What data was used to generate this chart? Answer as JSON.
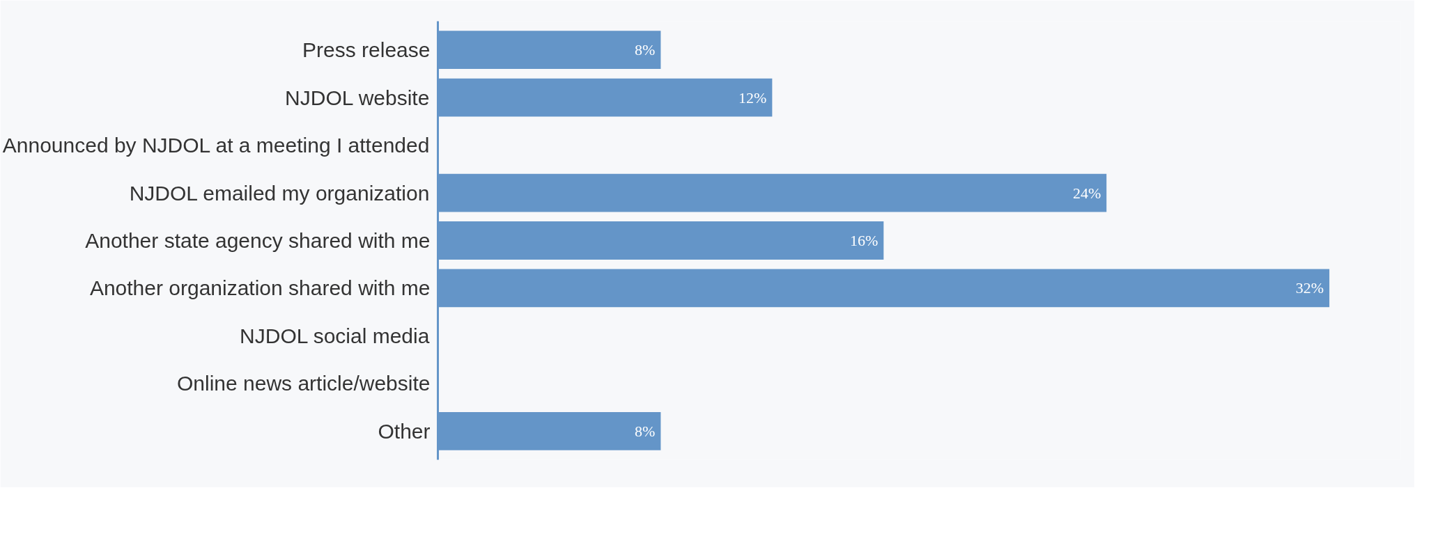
{
  "chart_data": {
    "type": "bar",
    "orientation": "horizontal",
    "categories": [
      "Press release",
      "NJDOL website",
      "Announced by NJDOL at a meeting I attended",
      "NJDOL emailed my organization",
      "Another state agency shared with me",
      "Another organization shared with me",
      "NJDOL social media",
      "Online news article/website",
      "Other"
    ],
    "values": [
      8,
      12,
      0,
      24,
      16,
      32,
      0,
      0,
      8
    ],
    "value_labels": [
      "8%",
      "12%",
      null,
      "24%",
      "16%",
      "32%",
      null,
      null,
      "8%"
    ],
    "color": "#6495c8",
    "grid": false
  }
}
